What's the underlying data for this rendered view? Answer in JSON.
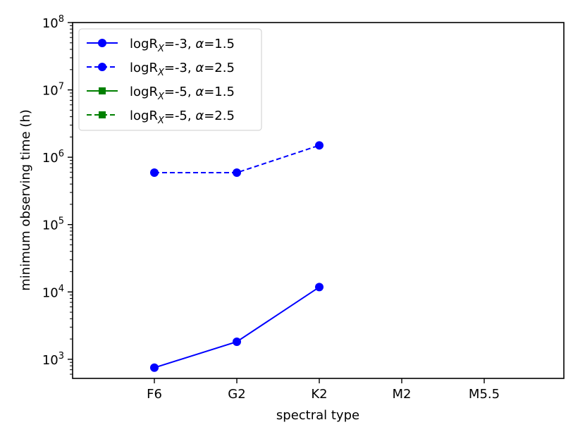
{
  "chart_data": {
    "type": "line",
    "xlabel": "spectral type",
    "ylabel": "minimum observing time (h)",
    "yscale": "log",
    "ylim": [
      520,
      100000000
    ],
    "categories": [
      "F6",
      "G2",
      "K2",
      "M2",
      "M5.5"
    ],
    "y_ticks": [
      {
        "value": 1000,
        "mantissa": "10",
        "exp": "3"
      },
      {
        "value": 10000,
        "mantissa": "10",
        "exp": "4"
      },
      {
        "value": 100000,
        "mantissa": "10",
        "exp": "5"
      },
      {
        "value": 1000000,
        "mantissa": "10",
        "exp": "6"
      },
      {
        "value": 10000000,
        "mantissa": "10",
        "exp": "7"
      },
      {
        "value": 100000000,
        "mantissa": "10",
        "exp": "8"
      }
    ],
    "grid": false,
    "legend_position": "top-left",
    "series": [
      {
        "name_main": "logR",
        "name_sub": "X",
        "name_rest": "=-3, ",
        "name_alpha": "α",
        "name_end": "=1.5",
        "color": "#0000ff",
        "dash": "solid",
        "marker": "circle",
        "values": [
          750,
          1820,
          11800,
          null,
          null
        ]
      },
      {
        "name_main": "logR",
        "name_sub": "X",
        "name_rest": "=-3, ",
        "name_alpha": "α",
        "name_end": "=2.5",
        "color": "#0000ff",
        "dash": "dashed",
        "marker": "circle",
        "values": [
          590000,
          590000,
          1500000,
          null,
          null
        ]
      },
      {
        "name_main": "logR",
        "name_sub": "X",
        "name_rest": "=-5, ",
        "name_alpha": "α",
        "name_end": "=1.5",
        "color": "#008000",
        "dash": "solid",
        "marker": "square",
        "values": [
          null,
          null,
          null,
          null,
          null
        ]
      },
      {
        "name_main": "logR",
        "name_sub": "X",
        "name_rest": "=-5, ",
        "name_alpha": "α",
        "name_end": "=2.5",
        "color": "#008000",
        "dash": "dashed",
        "marker": "square",
        "values": [
          null,
          null,
          null,
          null,
          null
        ]
      }
    ]
  }
}
